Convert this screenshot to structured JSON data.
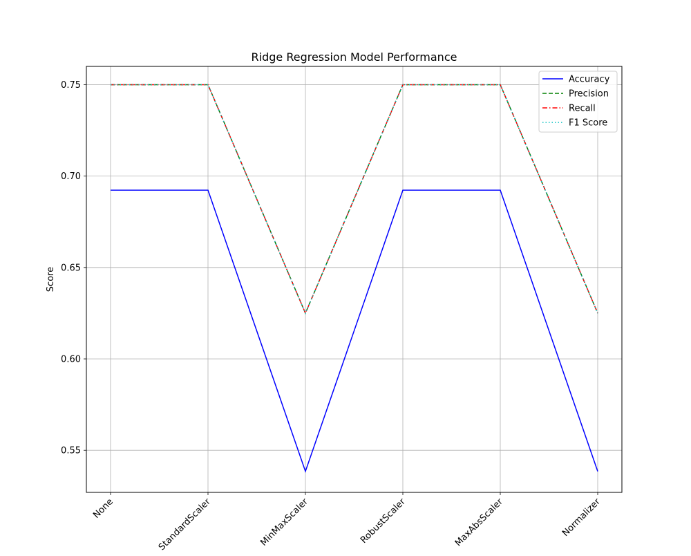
{
  "chart_data": {
    "type": "line",
    "title": "Ridge Regression Model Performance",
    "xlabel": "",
    "ylabel": "Score",
    "categories": [
      "None",
      "StandardScaler",
      "MinMaxScaler",
      "RobustScaler",
      "MaxAbsScaler",
      "Normalizer"
    ],
    "yticks": [
      0.55,
      0.6,
      0.65,
      0.7,
      0.75
    ],
    "ytick_labels": [
      "0.55",
      "0.60",
      "0.65",
      "0.70",
      "0.75"
    ],
    "ylim": [
      0.527,
      0.76
    ],
    "grid": true,
    "legend_position": "top-right",
    "series": [
      {
        "name": "Accuracy",
        "values": [
          0.6923,
          0.6923,
          0.5385,
          0.6923,
          0.6923,
          0.5385
        ],
        "color": "#0000ff",
        "style": "solid"
      },
      {
        "name": "Precision",
        "values": [
          0.75,
          0.75,
          0.625,
          0.75,
          0.75,
          0.625
        ],
        "color": "#008000",
        "style": "dashed"
      },
      {
        "name": "Recall",
        "values": [
          0.75,
          0.75,
          0.625,
          0.75,
          0.75,
          0.625
        ],
        "color": "#ff0000",
        "style": "dashdot"
      },
      {
        "name": "F1 Score",
        "values": [
          0.75,
          0.75,
          0.625,
          0.75,
          0.75,
          0.625
        ],
        "color": "#00bfbf",
        "style": "dotted"
      }
    ]
  }
}
